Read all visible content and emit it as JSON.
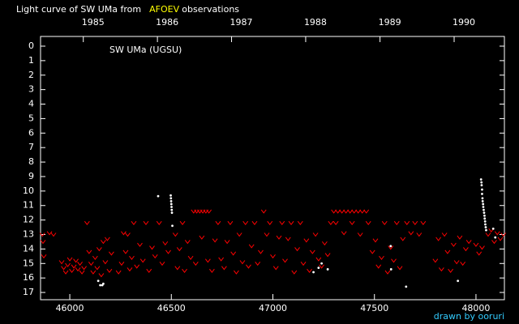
{
  "chart_data": {
    "type": "scatter",
    "title_parts": [
      {
        "text": "Light curve of SW UMa from",
        "color": "#ffffff"
      },
      {
        "text": "AFOEV",
        "color": "#ffff00"
      },
      {
        "text": "observations",
        "color": "#ffffff"
      }
    ],
    "annotation": "SW UMa (UGSU)",
    "credit": "drawn by ooruri",
    "xlim": [
      45856,
      48140
    ],
    "ylim": [
      -0.67,
      17.5
    ],
    "y_inverted": true,
    "xticks": [
      46000,
      46500,
      47000,
      47500,
      48000
    ],
    "yticks": [
      0,
      1,
      2,
      3,
      4,
      5,
      6,
      7,
      8,
      9,
      10,
      11,
      12,
      13,
      14,
      15,
      16,
      17
    ],
    "x2ticks": [
      {
        "value": 46066.5,
        "label": "1985"
      },
      {
        "value": 46431.5,
        "label": "1986"
      },
      {
        "value": 46796.5,
        "label": "1987"
      },
      {
        "value": 47161.5,
        "label": "1988"
      },
      {
        "value": 47527.5,
        "label": "1989"
      },
      {
        "value": 47892.5,
        "label": "1990"
      }
    ],
    "series": [
      {
        "marker": "v",
        "color": "#ff0000",
        "x": [
          45865,
          45868,
          45872,
          45900,
          45920,
          45960,
          45970,
          45980,
          45990,
          46000,
          46010,
          46020,
          46030,
          46040,
          46050,
          46060,
          46070,
          46085,
          46095,
          46105,
          46115,
          46125,
          46135,
          46145,
          46155,
          46165,
          46175,
          46185,
          46195,
          46205,
          46240,
          46255,
          46265,
          46275,
          46285,
          46295,
          46305,
          46315,
          46330,
          46345,
          46360,
          46375,
          46390,
          46405,
          46420,
          46440,
          46455,
          46470,
          46485,
          46520,
          46530,
          46540,
          46555,
          46565,
          46580,
          46595,
          46610,
          46625,
          46640,
          46655,
          46670,
          46685,
          46620,
          46650,
          46680,
          46700,
          46715,
          46730,
          46745,
          46760,
          46775,
          46790,
          46805,
          46820,
          46835,
          46850,
          46865,
          46880,
          46895,
          46910,
          46925,
          46940,
          46955,
          46970,
          46985,
          47000,
          47015,
          47030,
          47045,
          47060,
          47075,
          47090,
          47105,
          47120,
          47135,
          47150,
          47165,
          47180,
          47195,
          47210,
          47225,
          47240,
          47255,
          47270,
          47285,
          47300,
          47320,
          47340,
          47360,
          47380,
          47400,
          47420,
          47440,
          47460,
          47310,
          47350,
          47390,
          47430,
          47470,
          47490,
          47505,
          47520,
          47535,
          47550,
          47565,
          47580,
          47595,
          47610,
          47625,
          47640,
          47660,
          47680,
          47700,
          47720,
          47740,
          47800,
          47815,
          47830,
          47845,
          47860,
          47875,
          47890,
          47905,
          47920,
          47935,
          47950,
          47965,
          48000,
          48015,
          48030,
          48060,
          48075,
          48090,
          48105,
          48120,
          48135
        ],
        "values": [
          13.0,
          13.5,
          14.5,
          12.9,
          13.0,
          14.9,
          15.3,
          15.6,
          15.1,
          14.7,
          15.5,
          15.2,
          14.8,
          15.4,
          15.0,
          15.6,
          15.3,
          12.2,
          14.2,
          15.0,
          15.6,
          14.6,
          15.3,
          14.0,
          15.8,
          13.5,
          14.9,
          13.3,
          15.5,
          14.3,
          15.6,
          15.0,
          12.9,
          14.2,
          13.0,
          15.4,
          14.6,
          12.2,
          15.2,
          13.7,
          14.8,
          12.2,
          15.5,
          13.9,
          14.5,
          12.2,
          15.0,
          13.6,
          14.2,
          13.0,
          15.3,
          14.0,
          12.2,
          15.5,
          13.5,
          14.6,
          11.4,
          11.4,
          11.4,
          11.4,
          11.4,
          11.4,
          15.0,
          13.2,
          14.8,
          15.5,
          13.4,
          12.2,
          14.7,
          15.3,
          13.5,
          12.2,
          14.3,
          15.6,
          13.0,
          14.9,
          12.2,
          15.2,
          13.8,
          12.2,
          15.0,
          14.2,
          11.4,
          13.0,
          12.2,
          14.5,
          15.3,
          13.2,
          12.2,
          14.8,
          13.3,
          12.2,
          15.6,
          14.0,
          12.2,
          15.0,
          13.4,
          15.5,
          14.2,
          13.0,
          14.7,
          15.2,
          13.6,
          14.4,
          12.2,
          11.4,
          11.4,
          11.4,
          11.4,
          11.4,
          11.4,
          11.4,
          11.4,
          11.4,
          12.2,
          12.9,
          12.2,
          13.0,
          12.2,
          14.2,
          13.4,
          15.2,
          14.6,
          12.2,
          15.6,
          13.9,
          14.8,
          12.2,
          15.3,
          13.3,
          12.2,
          12.9,
          12.2,
          13.0,
          12.2,
          14.8,
          13.3,
          15.4,
          13.0,
          14.2,
          15.5,
          13.7,
          14.9,
          13.2,
          15.0,
          14.0,
          13.5,
          13.7,
          14.3,
          13.9,
          13.0,
          12.7,
          13.5,
          12.9,
          13.3,
          13.0
        ]
      },
      {
        "marker": "dot",
        "color": "#ffffff",
        "x": [
          46140,
          46150,
          46160,
          46165,
          46435,
          46497,
          46498,
          46499,
          46500,
          46501,
          46502,
          46503,
          46505,
          47200,
          47225,
          47240,
          47270,
          47580,
          47582,
          47656,
          47911,
          48025,
          48027,
          48028,
          48030,
          48030,
          48032,
          48033,
          48035,
          48036,
          48038,
          48040,
          48042,
          48043,
          48045,
          48046,
          48048,
          48050,
          48085,
          48095
        ],
        "values": [
          16.2,
          16.5,
          16.5,
          16.4,
          10.35,
          10.3,
          10.5,
          10.7,
          10.9,
          11.1,
          11.3,
          11.5,
          12.4,
          15.6,
          15.3,
          15.0,
          15.4,
          13.8,
          15.4,
          16.6,
          16.2,
          9.2,
          9.4,
          9.6,
          9.9,
          10.2,
          10.5,
          10.7,
          10.9,
          11.1,
          11.3,
          11.5,
          11.7,
          11.9,
          12.1,
          12.3,
          12.5,
          12.7,
          12.6,
          13.2
        ]
      }
    ]
  }
}
